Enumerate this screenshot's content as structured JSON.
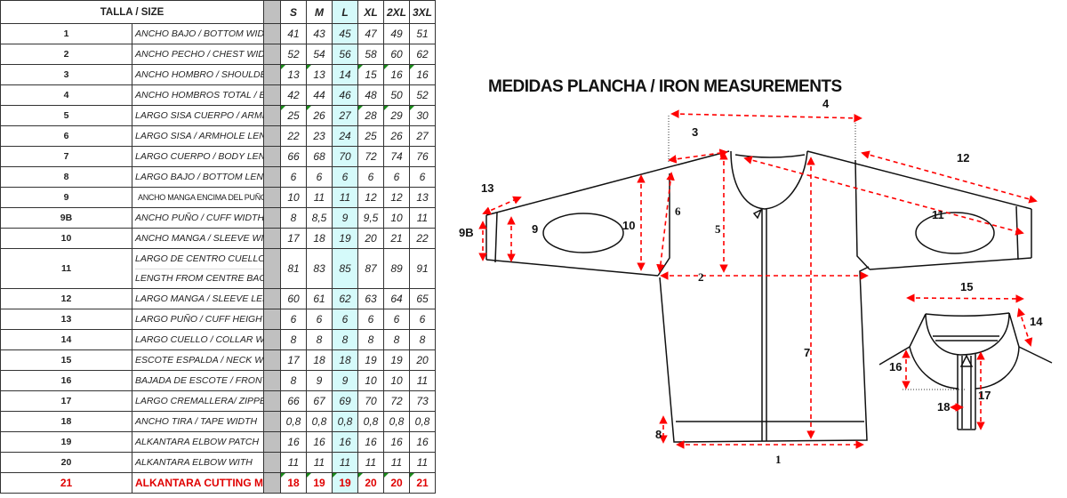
{
  "table": {
    "header": {
      "label": "TALLA / SIZE",
      "sizes": [
        "S",
        "M",
        "L",
        "XL",
        "2XL",
        "3XL"
      ]
    },
    "highlight_size": "L",
    "highlight_color": "#d5fafa",
    "rows": [
      {
        "num": "1",
        "label": "ANCHO BAJO / BOTTOM WIDTH",
        "values": [
          "41",
          "43",
          "45",
          "47",
          "49",
          "51"
        ]
      },
      {
        "num": "2",
        "label": "ANCHO PECHO / CHEST WIDTH",
        "values": [
          "52",
          "54",
          "56",
          "58",
          "60",
          "62"
        ]
      },
      {
        "num": "3",
        "label": "ANCHO HOMBRO / SHOULDER WIDTH",
        "values": [
          "13",
          "13",
          "14",
          "15",
          "16",
          "16"
        ]
      },
      {
        "num": "4",
        "label": "ANCHO HOMBROS TOTAL / BACK WIDTH",
        "values": [
          "42",
          "44",
          "46",
          "48",
          "50",
          "52"
        ]
      },
      {
        "num": "5",
        "label": "LARGO SISA CUERPO / ARMHOLE LENGTH FRONT",
        "values": [
          "25",
          "26",
          "27",
          "28",
          "29",
          "30"
        ]
      },
      {
        "num": "6",
        "label": "LARGO SISA / ARMHOLE LENGTH",
        "values": [
          "22",
          "23",
          "24",
          "25",
          "26",
          "27"
        ]
      },
      {
        "num": "7",
        "label": "LARGO CUERPO / BODY LENGTH",
        "values": [
          "66",
          "68",
          "70",
          "72",
          "74",
          "76"
        ]
      },
      {
        "num": "8",
        "label": "LARGO BAJO / BOTTOM LENGTH",
        "values": [
          "6",
          "6",
          "6",
          "6",
          "6",
          "6"
        ]
      },
      {
        "num": "9",
        "label": "ANCHO MANGA ENCIMA DEL PUÑO / SLEEVE WIDTH ON CUFF",
        "values": [
          "10",
          "11",
          "11",
          "12",
          "12",
          "13"
        ]
      },
      {
        "num": "9B",
        "label": "ANCHO PUÑO / CUFF WIDTH",
        "values": [
          "8",
          "8,5",
          "9",
          "9,5",
          "10",
          "11"
        ]
      },
      {
        "num": "10",
        "label": "ANCHO  MANGA /  SLEEVE WIDTH",
        "values": [
          "17",
          "18",
          "19",
          "20",
          "21",
          "22"
        ]
      },
      {
        "num": "11",
        "label": "LARGO DE CENTRO CUELLO A PUÑO/",
        "label2": "LENGTH FROM CENTRE BACK TO CUFF",
        "values": [
          "81",
          "83",
          "85",
          "87",
          "89",
          "91"
        ]
      },
      {
        "num": "12",
        "label": "LARGO MANGA / SLEEVE LENGTH",
        "values": [
          "60",
          "61",
          "62",
          "63",
          "64",
          "65"
        ]
      },
      {
        "num": "13",
        "label": "LARGO PUÑO / CUFF HEIGHT",
        "values": [
          "6",
          "6",
          "6",
          "6",
          "6",
          "6"
        ]
      },
      {
        "num": "14",
        "label": "LARGO CUELLO / COLLAR WIDTH",
        "values": [
          "8",
          "8",
          "8",
          "8",
          "8",
          "8"
        ]
      },
      {
        "num": "15",
        "label": " ESCOTE ESPALDA / NECK WIDTH",
        "values": [
          "17",
          "18",
          "18",
          "19",
          "19",
          "20"
        ]
      },
      {
        "num": "16",
        "label": "BAJADA DE ESCOTE / FRONT NECK DROP",
        "values": [
          "8",
          "9",
          "9",
          "10",
          "10",
          "11"
        ]
      },
      {
        "num": "17",
        "label": "LARGO CREMALLERA/ ZIPPER LENGTH",
        "values": [
          "66",
          "67",
          "69",
          "70",
          "72",
          "73"
        ]
      },
      {
        "num": "18",
        "label": "ANCHO TIRA / TAPE WIDTH",
        "values": [
          "0,8",
          "0,8",
          "0,8",
          "0,8",
          "0,8",
          "0,8"
        ]
      },
      {
        "num": "19",
        "label": "ALKANTARA ELBOW  PATCH",
        "values": [
          "16",
          "16",
          "16",
          "16",
          "16",
          "16"
        ]
      },
      {
        "num": "20",
        "label": "ALKANTARA ELBOW  WITH",
        "values": [
          "11",
          "11",
          "11",
          "11",
          "11",
          "11"
        ]
      },
      {
        "num": "21",
        "label": "ALKANTARA CUTTING MEASUREMENT",
        "values": [
          "18",
          "19",
          "19",
          "20",
          "20",
          "21"
        ],
        "color": "#e00000"
      }
    ]
  },
  "diagram": {
    "title": "MEDIDAS PLANCHA / IRON MEASUREMENTS",
    "measure_color": "#ff0000",
    "labels": {
      "m1": "1",
      "m2": "2",
      "m3": "3",
      "m4": "4",
      "m5": "5",
      "m6": "6",
      "m7": "7",
      "m8": "8",
      "m9": "9",
      "m9b": "9B",
      "m10": "10",
      "m11": "11",
      "m12": "12",
      "m13": "13",
      "m14": "14",
      "m15": "15",
      "m16": "16",
      "m17": "17",
      "m18": "18"
    }
  }
}
